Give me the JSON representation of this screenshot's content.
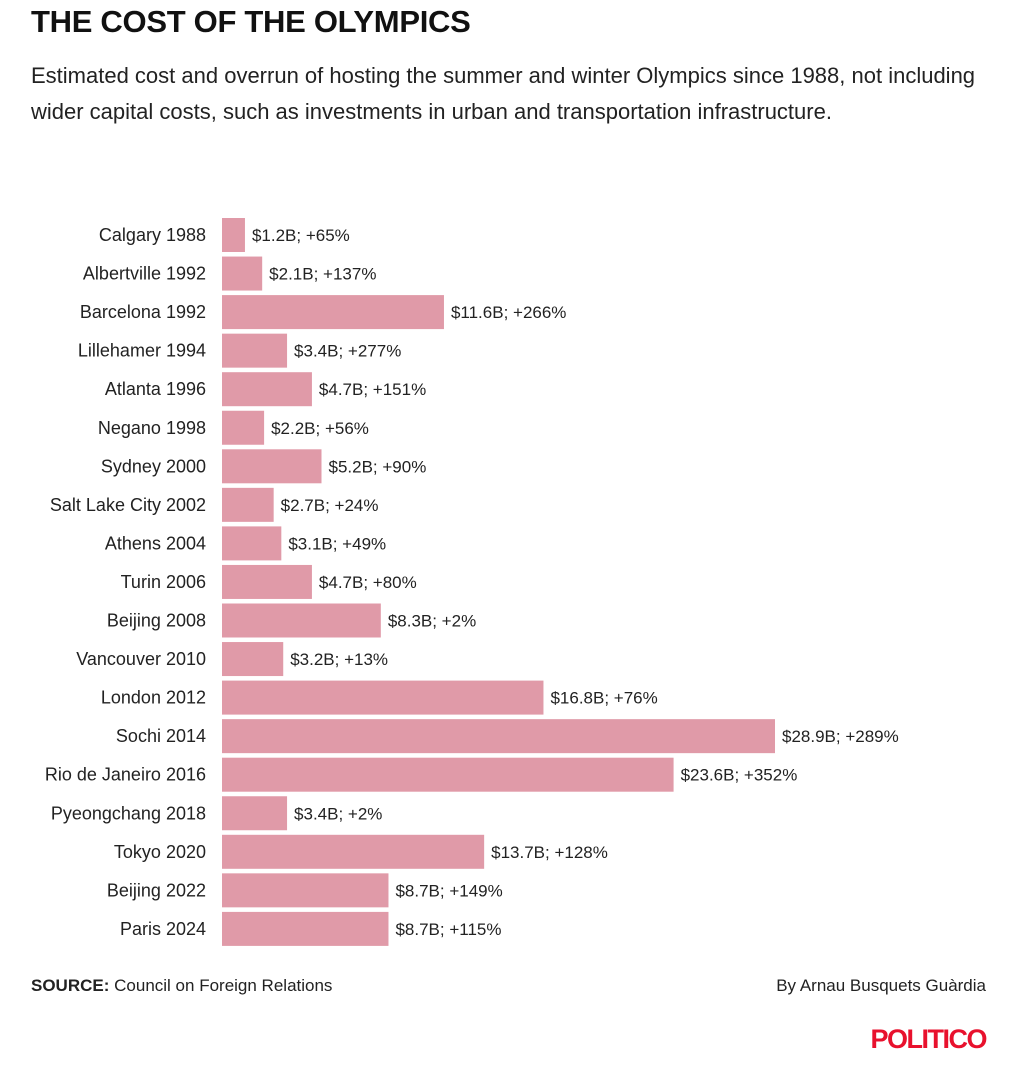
{
  "header": {
    "title": "THE COST OF THE OLYMPICS",
    "subtitle": "Estimated cost and overrun of hosting the summer and winter Olympics since 1988, not including wider capital costs, such as investments in urban and transportation infrastructure."
  },
  "chart_data": {
    "type": "bar",
    "orientation": "horizontal",
    "title": "THE COST OF THE OLYMPICS",
    "bar_color": "#e09aa8",
    "categories": [
      "Calgary 1988",
      "Albertville 1992",
      "Barcelona 1992",
      "Lillehamer 1994",
      "Atlanta 1996",
      "Negano 1998",
      "Sydney 2000",
      "Salt Lake City 2002",
      "Athens 2004",
      "Turin 2006",
      "Beijing 2008",
      "Vancouver 2010",
      "London 2012",
      "Sochi 2014",
      "Rio de Janeiro 2016",
      "Pyeongchang 2018",
      "Tokyo 2020",
      "Beijing 2022",
      "Paris 2024"
    ],
    "values": [
      1.2,
      2.1,
      11.6,
      3.4,
      4.7,
      2.2,
      5.2,
      2.7,
      3.1,
      4.7,
      8.3,
      3.2,
      16.8,
      28.9,
      23.6,
      3.4,
      13.7,
      8.7,
      8.7
    ],
    "overrun_pct": [
      65,
      137,
      266,
      277,
      151,
      56,
      90,
      24,
      49,
      80,
      2,
      13,
      76,
      289,
      352,
      2,
      128,
      149,
      115
    ],
    "labels": [
      "$1.2B; +65%",
      "$2.1B; +137%",
      "$11.6B; +266%",
      "$3.4B; +277%",
      "$4.7B; +151%",
      "$2.2B; +56%",
      "$5.2B; +90%",
      "$2.7B; +24%",
      "$3.1B; +49%",
      "$4.7B; +80%",
      "$8.3B; +2%",
      "$3.2B; +13%",
      "$16.8B; +76%",
      "$28.9B; +289%",
      "$23.6B; +352%",
      "$3.4B; +2%",
      "$13.7B; +128%",
      "$8.7B; +149%",
      "$8.7B; +115%"
    ],
    "unit": "$B",
    "xlim": [
      0,
      28.9
    ],
    "grid": false,
    "legend": "none"
  },
  "footer": {
    "source_label": "SOURCE:",
    "source_text": "Council on Foreign Relations",
    "byline": "By Arnau Busquets Guàrdia",
    "logo": "POLITICO"
  },
  "colors": {
    "bar": "#e09aa8",
    "logo": "#e8112d",
    "text": "#111111"
  }
}
